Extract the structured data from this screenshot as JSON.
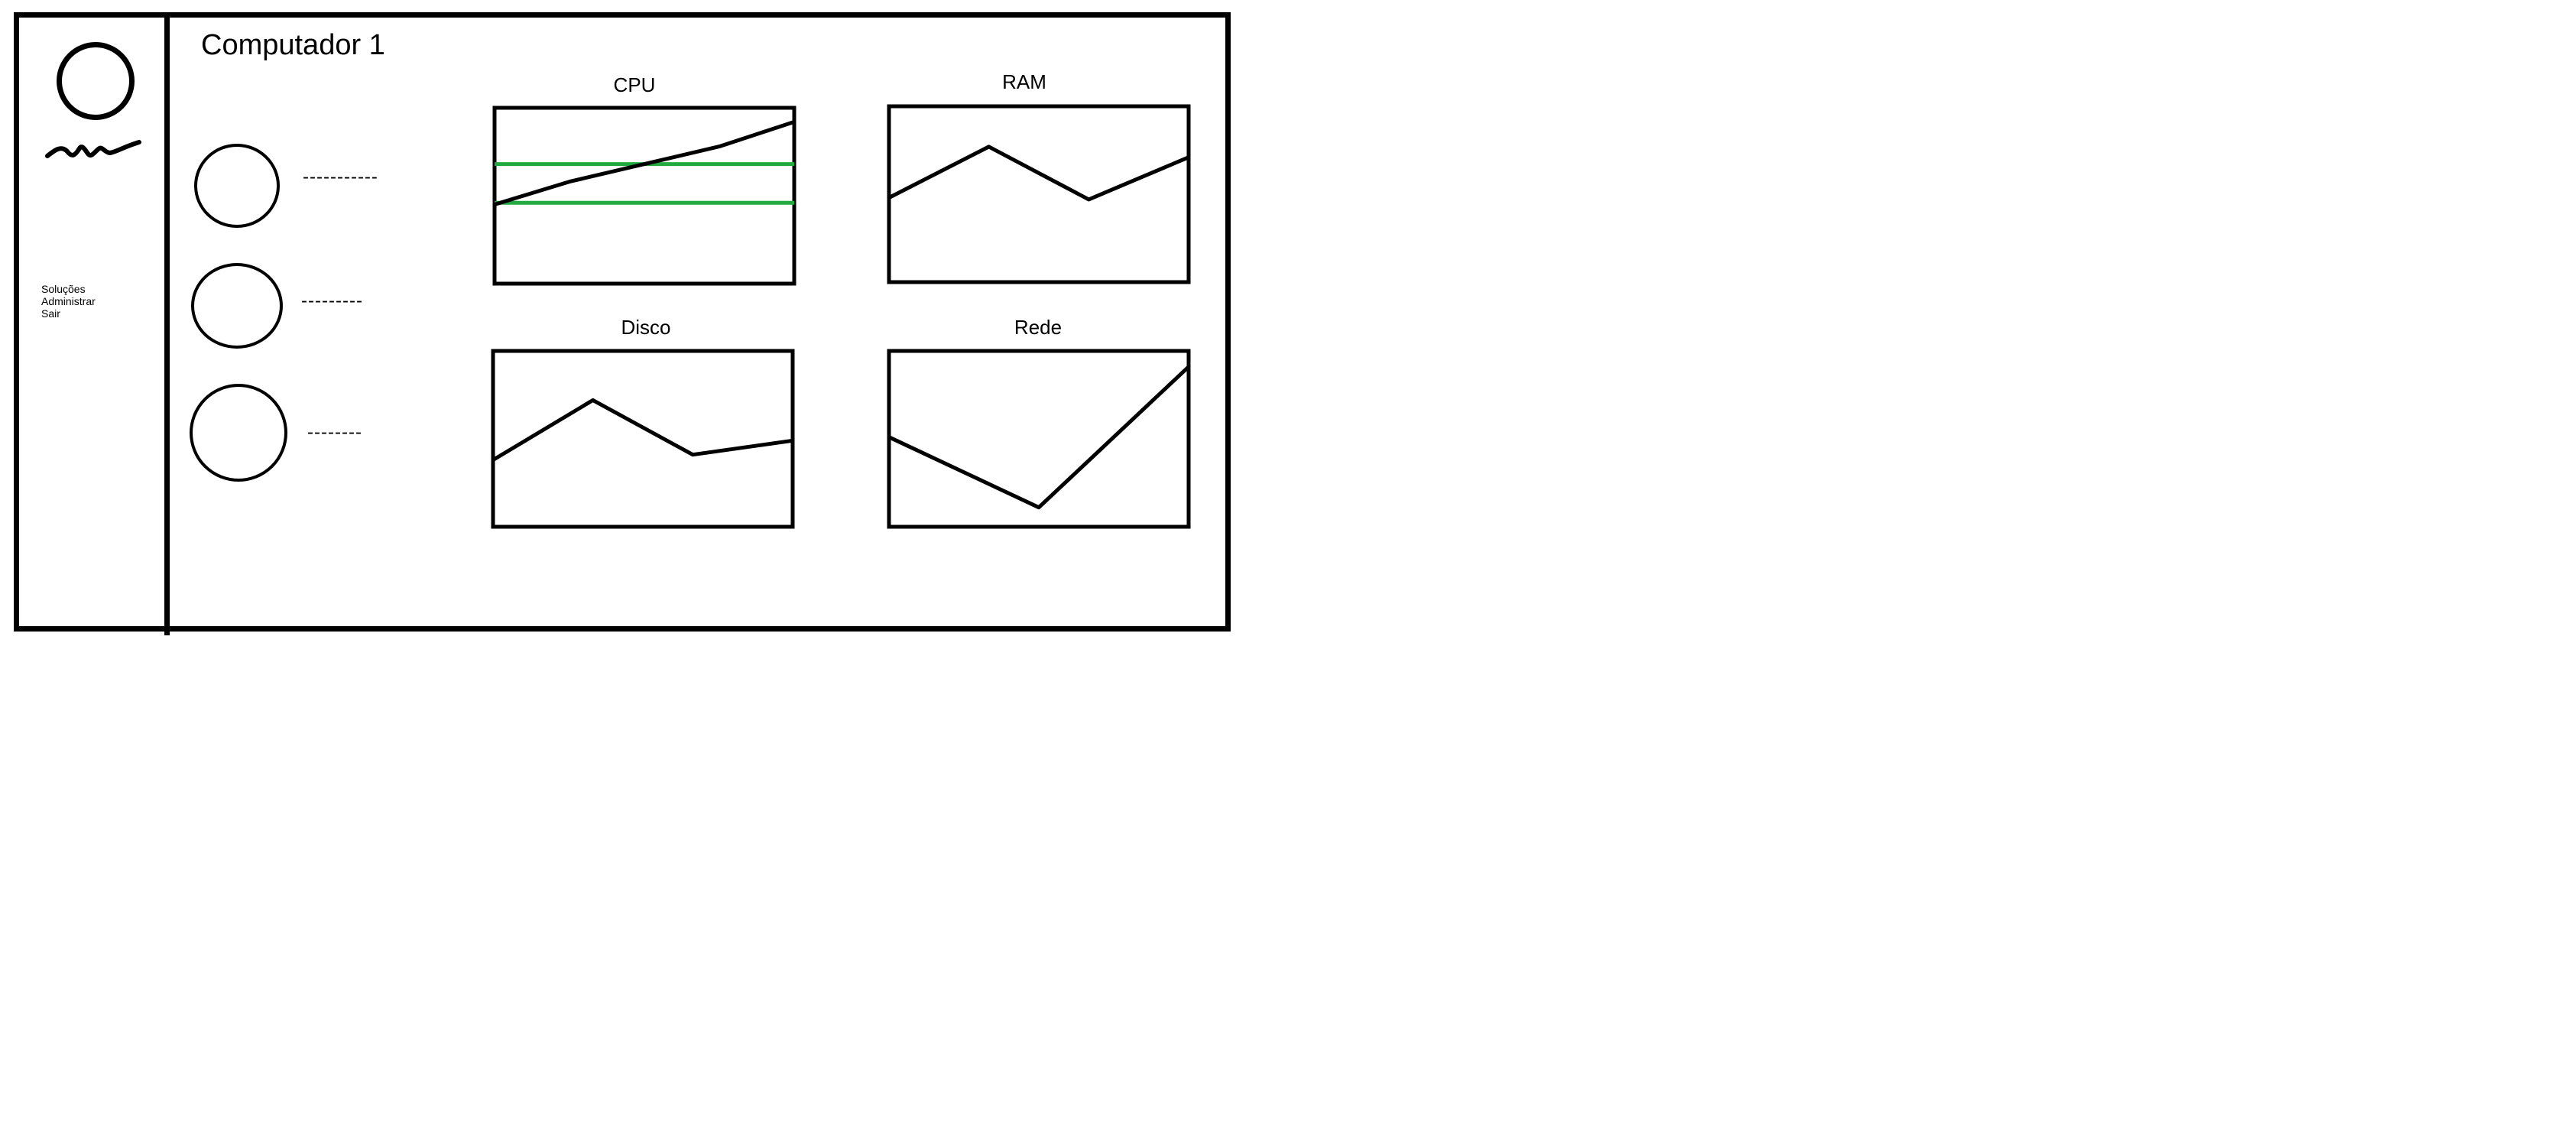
{
  "header": {
    "title": "Computador 1"
  },
  "sidebar": {
    "items": [
      {
        "label": "Soluções"
      },
      {
        "label": "Administrar"
      },
      {
        "label": "Sair"
      }
    ]
  },
  "status_list": {
    "items": [
      {
        "value": "-----------"
      },
      {
        "value": "---------"
      },
      {
        "value": "--------"
      }
    ]
  },
  "colors": {
    "frame": "#000000",
    "threshold_line": "#22a93f"
  },
  "charts": {
    "cpu": {
      "title": "CPU"
    },
    "ram": {
      "title": "RAM"
    },
    "disco": {
      "title": "Disco"
    },
    "rede": {
      "title": "Rede"
    }
  },
  "chart_data": [
    {
      "type": "line",
      "title": "CPU",
      "x": [
        0,
        1,
        2,
        3,
        4
      ],
      "series": [
        {
          "values": [
            45,
            58,
            68,
            78,
            92
          ]
        }
      ],
      "thresholds": [
        68,
        46
      ],
      "xlim": [
        0,
        4
      ],
      "ylim": [
        0,
        100
      ]
    },
    {
      "type": "line",
      "title": "RAM",
      "x": [
        0,
        1,
        2,
        3
      ],
      "series": [
        {
          "values": [
            48,
            77,
            47,
            71
          ]
        }
      ],
      "xlim": [
        0,
        3
      ],
      "ylim": [
        0,
        100
      ]
    },
    {
      "type": "line",
      "title": "Disco",
      "x": [
        0,
        1,
        2,
        3
      ],
      "series": [
        {
          "values": [
            38,
            72,
            41,
            49
          ]
        }
      ],
      "xlim": [
        0,
        3
      ],
      "ylim": [
        0,
        100
      ]
    },
    {
      "type": "line",
      "title": "Rede",
      "x": [
        0,
        1,
        2
      ],
      "series": [
        {
          "values": [
            51,
            11,
            91
          ]
        }
      ],
      "xlim": [
        0,
        2
      ],
      "ylim": [
        0,
        100
      ]
    }
  ]
}
